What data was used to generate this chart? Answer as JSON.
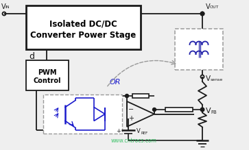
{
  "bg_color": "#efefef",
  "line_color": "#1a1a1a",
  "blue_color": "#1a1acc",
  "box_color": "#ffffff",
  "dashed_color": "#999999",
  "transformer_color": "#2222aa",
  "watermark_color": "#22bb55",
  "watermark": "www.cntrocs.com",
  "title_text1": "Isolated DC/DC",
  "title_text2": "Converter Power Stage",
  "pwm_text1": "PWM",
  "pwm_text2": "Control",
  "vin_text": "V",
  "vin_sub": "IN",
  "vout_text": "V",
  "vout_sub": "OUT",
  "vsense_text": "V",
  "vsense_sub": "sense",
  "vfb_text": "V",
  "vfb_sub": "FB",
  "vref_text": "V",
  "vref_sub": "REF",
  "d_text": "d",
  "or_text": "OR",
  "figw": 3.63,
  "figh": 2.19,
  "dpi": 100
}
